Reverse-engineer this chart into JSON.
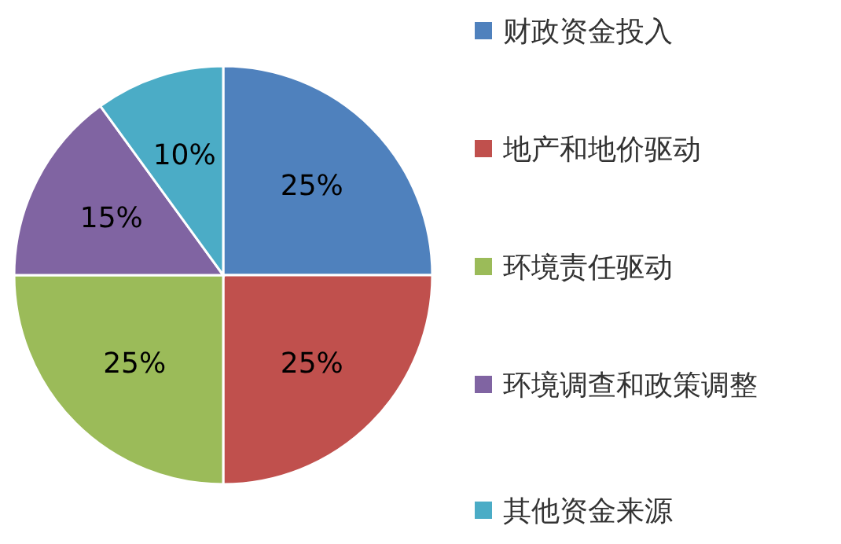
{
  "chart_data": {
    "type": "pie",
    "categories": [
      "财政资金投入",
      "地产和地价驱动",
      "环境责任驱动",
      "环境调查和政策调整",
      "其他资金来源"
    ],
    "values": [
      25,
      25,
      25,
      15,
      10
    ],
    "value_labels": [
      "25%",
      "25%",
      "25%",
      "15%",
      "10%"
    ],
    "colors": [
      "#4f81bd",
      "#c0504d",
      "#9bbb59",
      "#8064a2",
      "#4bacc6"
    ],
    "legend": "right"
  }
}
